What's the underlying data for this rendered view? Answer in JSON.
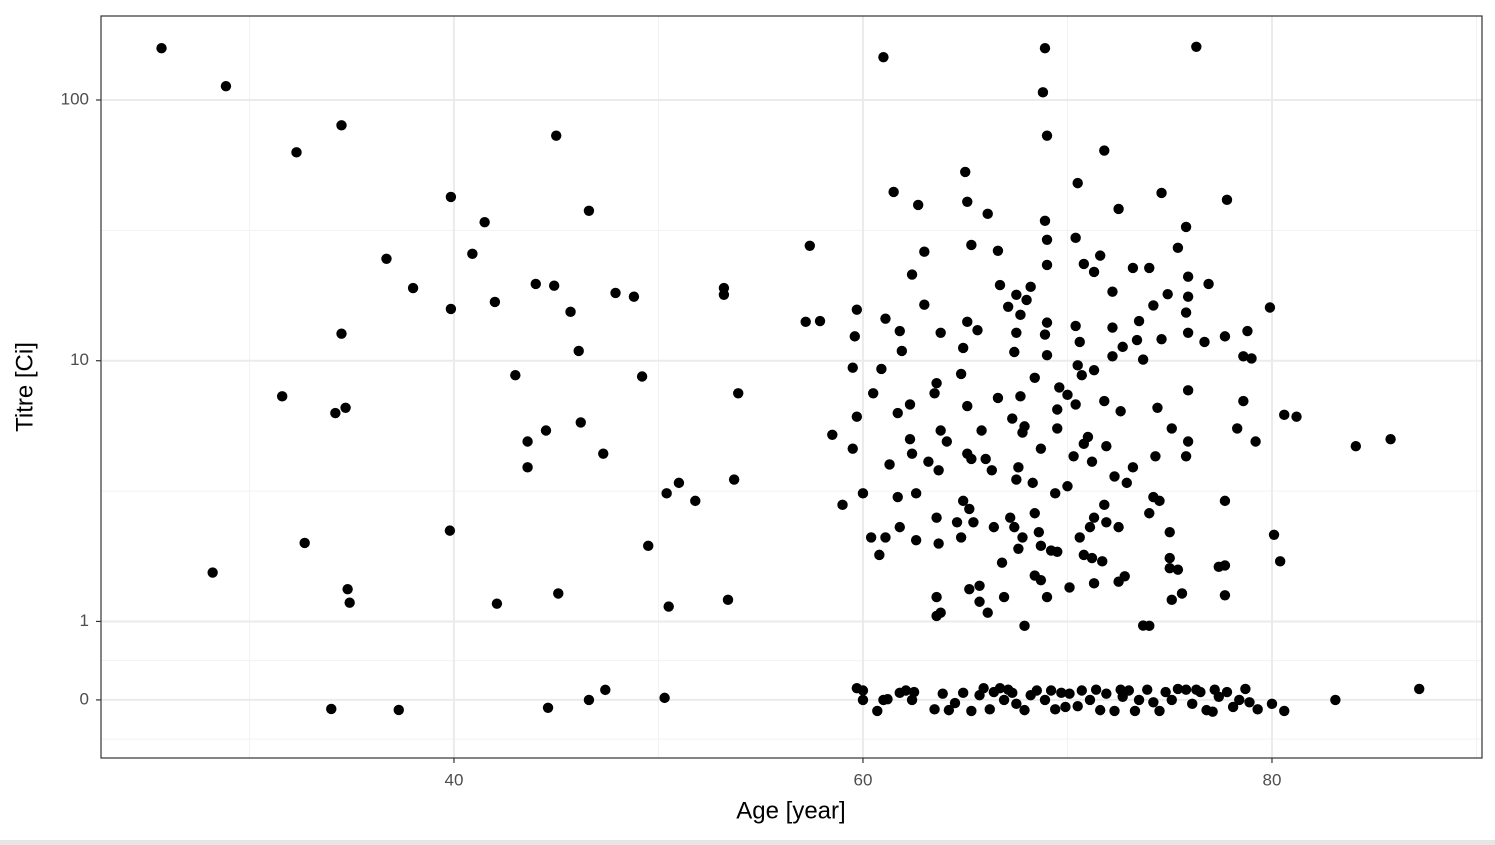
{
  "chart_data": {
    "type": "scatter",
    "x_label": "Age [year]",
    "y_label": "Titre [Ci]",
    "color": "#000000",
    "yscale": "pseudo_log",
    "grid": true,
    "xlim": [
      22.74,
      90.27
    ],
    "ylim": [
      -0.74,
      210
    ],
    "xticks": [
      40,
      60,
      80
    ],
    "yticks": [
      0,
      1,
      10,
      100
    ],
    "x": [
      25.7,
      28.85,
      32.3,
      34.5,
      36.7,
      38.0,
      39.85,
      40.9,
      41.5,
      39.85,
      42.0,
      34.5,
      31.6,
      34.2,
      34.7,
      32.7,
      28.2,
      34.8,
      34.9,
      39.8,
      34.0,
      37.3,
      44.0,
      44.9,
      45.0,
      46.6,
      45.7,
      43.0,
      46.1,
      43.6,
      44.5,
      43.6,
      46.2,
      47.3,
      47.9,
      48.8,
      49.2,
      53.2,
      53.2,
      53.9,
      50.4,
      51.0,
      51.8,
      53.7,
      49.5,
      42.1,
      45.1,
      50.5,
      53.4,
      44.6,
      46.6,
      47.4,
      50.3,
      57.4,
      57.2,
      57.9,
      61.0,
      68.9,
      76.3,
      68.8,
      69.0,
      71.8,
      65.0,
      70.5,
      61.5,
      74.6,
      77.8,
      62.7,
      65.1,
      72.5,
      66.1,
      68.9,
      75.8,
      70.4,
      69.0,
      63.0,
      65.3,
      66.6,
      75.4,
      71.6,
      70.8,
      69.0,
      73.2,
      74.0,
      71.3,
      62.4,
      75.9,
      66.7,
      76.9,
      68.2,
      72.2,
      67.5,
      74.9,
      75.9,
      68.0,
      74.2,
      79.9,
      63.0,
      59.7,
      67.1,
      75.8,
      67.7,
      61.1,
      65.1,
      69.0,
      73.5,
      70.4,
      78.8,
      61.8,
      65.6,
      63.8,
      72.2,
      75.9,
      77.7,
      68.9,
      59.6,
      67.5,
      73.4,
      74.6,
      76.7,
      70.6,
      72.7,
      64.9,
      67.4,
      61.9,
      69.0,
      72.2,
      78.6,
      79.0,
      73.7,
      70.5,
      59.5,
      71.3,
      64.8,
      70.7,
      68.4,
      60.9,
      63.6,
      69.6,
      75.9,
      70.0,
      67.7,
      60.5,
      63.5,
      66.6,
      71.8,
      78.6,
      62.3,
      65.1,
      70.4,
      74.4,
      69.5,
      72.6,
      80.6,
      81.2,
      61.7,
      67.3,
      59.7,
      67.9,
      75.1,
      78.3,
      63.8,
      65.8,
      69.5,
      58.5,
      71.0,
      67.8,
      62.3,
      64.1,
      70.8,
      71.9,
      84.1,
      85.8,
      75.9,
      79.2,
      68.7,
      59.5,
      62.4,
      65.1,
      70.3,
      74.3,
      75.8,
      71.2,
      63.2,
      65.3,
      66.0,
      61.3,
      67.6,
      73.2,
      63.7,
      66.3,
      72.3,
      67.5,
      72.9,
      68.3,
      70.0,
      60.0,
      69.4,
      62.6,
      74.2,
      74.5,
      61.7,
      64.9,
      77.7,
      59.0,
      71.8,
      65.2,
      68.4,
      74.0,
      67.2,
      71.3,
      63.6,
      71.9,
      64.6,
      65.4,
      67.4,
      66.4,
      72.5,
      71.1,
      61.8,
      75.0,
      80.1,
      68.6,
      60.4,
      61.1,
      64.8,
      67.8,
      70.6,
      63.7,
      62.6,
      68.7,
      69.2,
      60.8,
      67.6,
      69.5,
      70.8,
      71.2,
      75.0,
      80.4,
      75.0,
      66.8,
      71.7,
      77.7,
      77.4,
      75.4,
      68.4,
      72.8,
      68.7,
      72.5,
      71.3,
      65.7,
      70.1,
      65.2,
      75.6,
      77.7,
      63.6,
      66.9,
      69.0,
      75.1,
      65.7,
      63.8,
      66.1,
      63.6,
      73.7,
      74.0,
      67.9,
      59.7,
      60.0,
      60.7,
      61.0,
      61.2,
      61.8,
      62.1,
      62.5,
      62.4,
      63.5,
      63.9,
      64.2,
      64.5,
      64.9,
      65.3,
      65.7,
      65.9,
      66.2,
      66.4,
      66.7,
      66.9,
      67.3,
      67.5,
      67.9,
      68.2,
      68.5,
      68.9,
      69.2,
      69.4,
      69.9,
      70.1,
      70.5,
      70.7,
      71.1,
      71.4,
      71.6,
      71.9,
      72.3,
      72.7,
      73.0,
      73.3,
      73.5,
      73.9,
      74.2,
      74.5,
      74.8,
      75.1,
      75.4,
      75.8,
      76.1,
      76.5,
      76.8,
      77.1,
      77.4,
      77.8,
      78.1,
      78.4,
      78.7,
      78.9,
      79.3,
      80.0,
      80.6,
      83.1,
      87.2,
      60.0,
      67.1,
      69.7,
      72.6,
      76.3,
      77.2
    ],
    "y": [
      158,
      113,
      63,
      80,
      24.6,
      19,
      42.5,
      25.7,
      34,
      15.8,
      16.8,
      12.7,
      7.3,
      6.3,
      6.6,
      2.0,
      1.54,
      1.33,
      1.18,
      2.23,
      -0.115,
      -0.128,
      19.7,
      19.4,
      73,
      37.6,
      15.4,
      8.8,
      10.9,
      4.9,
      5.4,
      3.9,
      5.8,
      4.4,
      18.2,
      17.6,
      8.7,
      19.0,
      17.9,
      7.5,
      3.1,
      3.4,
      2.9,
      3.5,
      1.95,
      1.17,
      1.28,
      1.14,
      1.21,
      -0.1,
      0,
      0.128,
      0.026,
      27.6,
      14.1,
      14.2,
      146,
      158,
      160,
      107,
      73,
      64,
      53,
      48,
      44.4,
      44,
      41.4,
      39.6,
      40.7,
      38.2,
      36.6,
      34.4,
      32.6,
      29.6,
      29.1,
      26.2,
      27.8,
      26.4,
      27.1,
      25.3,
      23.5,
      23.3,
      22.7,
      22.7,
      21.9,
      21.4,
      21.0,
      19.5,
      19.7,
      19.2,
      18.4,
      17.9,
      18.0,
      17.6,
      17.1,
      16.3,
      16.0,
      16.4,
      15.7,
      16.1,
      15.3,
      15.0,
      14.5,
      14.1,
      14.0,
      14.2,
      13.6,
      13.0,
      13.0,
      13.1,
      12.8,
      13.4,
      12.8,
      12.4,
      12.6,
      12.4,
      12.8,
      12.0,
      12.1,
      11.8,
      11.8,
      11.3,
      11.2,
      10.8,
      10.9,
      10.5,
      10.4,
      10.4,
      10.2,
      10.1,
      9.6,
      9.4,
      9.2,
      8.9,
      8.8,
      8.6,
      9.3,
      8.2,
      7.9,
      7.7,
      7.4,
      7.3,
      7.5,
      7.5,
      7.2,
      7.0,
      7.0,
      6.8,
      6.7,
      6.8,
      6.6,
      6.5,
      6.4,
      6.2,
      6.1,
      6.3,
      6.0,
      6.1,
      5.6,
      5.5,
      5.5,
      5.4,
      5.4,
      5.5,
      5.2,
      5.1,
      5.3,
      5.0,
      4.9,
      4.8,
      4.7,
      4.7,
      5.0,
      4.9,
      4.9,
      4.6,
      4.6,
      4.4,
      4.4,
      4.3,
      4.3,
      4.3,
      4.1,
      4.1,
      4.2,
      4.2,
      4.0,
      3.9,
      3.9,
      3.8,
      3.8,
      3.6,
      3.5,
      3.4,
      3.4,
      3.3,
      3.1,
      3.1,
      3.1,
      3.0,
      2.9,
      3.0,
      2.9,
      2.9,
      2.8,
      2.8,
      2.7,
      2.6,
      2.6,
      2.5,
      2.5,
      2.5,
      2.4,
      2.4,
      2.4,
      2.3,
      2.3,
      2.3,
      2.3,
      2.3,
      2.2,
      2.15,
      2.2,
      2.1,
      2.1,
      2.1,
      2.1,
      2.1,
      1.99,
      2.05,
      1.95,
      1.87,
      1.8,
      1.9,
      1.85,
      1.8,
      1.75,
      1.75,
      1.7,
      1.6,
      1.68,
      1.7,
      1.64,
      1.62,
      1.58,
      1.5,
      1.49,
      1.44,
      1.42,
      1.4,
      1.37,
      1.35,
      1.33,
      1.28,
      1.26,
      1.24,
      1.24,
      1.24,
      1.21,
      1.19,
      1.08,
      1.08,
      1.05,
      0.948,
      0.944,
      0.944,
      0.15,
      0.12,
      -0.14,
      0,
      0.01,
      0.09,
      0.12,
      0.1,
      0,
      -0.12,
      0.08,
      -0.13,
      -0.04,
      0.09,
      -0.14,
      0.06,
      0.15,
      -0.12,
      0.1,
      0.15,
      0,
      0.09,
      -0.05,
      -0.13,
      0.06,
      0.12,
      0,
      0.12,
      -0.12,
      -0.09,
      0.08,
      -0.08,
      0.12,
      0,
      0.13,
      -0.13,
      0.08,
      -0.14,
      0.04,
      0.12,
      -0.14,
      0,
      0.13,
      -0.03,
      -0.14,
      0.1,
      0,
      0.14,
      0.13,
      -0.05,
      0.1,
      -0.13,
      -0.15,
      0.04,
      0.1,
      -0.09,
      0,
      0.14,
      -0.03,
      -0.12,
      -0.05,
      -0.14,
      0,
      0.14,
      0,
      0.13,
      0.09,
      0.13,
      0.13,
      0.13
    ]
  }
}
